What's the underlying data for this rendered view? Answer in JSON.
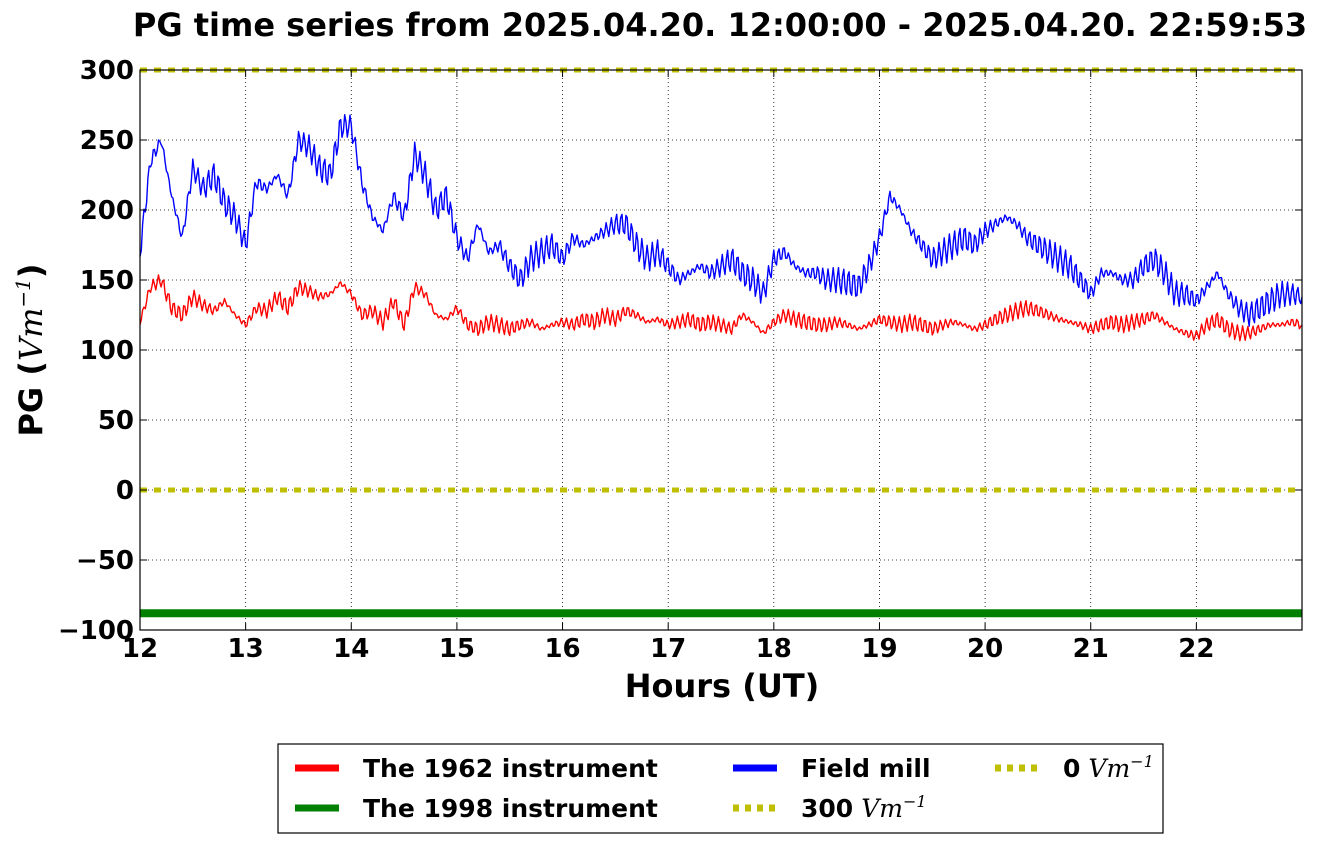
{
  "chart_data": {
    "type": "line",
    "title": "PG time series from 2025.04.20. 12:00:00 - 2025.04.20. 22:59:53",
    "xlabel": "Hours (UT)",
    "ylabel": "PG (",
    "ylabel_unit": "Vm",
    "ylabel_exp": "−1",
    "ylabel_close": ")",
    "xlim": [
      12,
      23
    ],
    "ylim": [
      -100,
      300
    ],
    "x_ticks": [
      12,
      13,
      14,
      15,
      16,
      17,
      18,
      19,
      20,
      21,
      22
    ],
    "x_tick_labels": [
      "12",
      "13",
      "14",
      "15",
      "16",
      "17",
      "18",
      "19",
      "20",
      "21",
      "22"
    ],
    "y_ticks": [
      -100,
      -50,
      0,
      50,
      100,
      150,
      200,
      250,
      300
    ],
    "y_tick_labels": [
      "−100",
      "−50",
      "0",
      "50",
      "100",
      "150",
      "200",
      "250",
      "300"
    ],
    "grid": true,
    "legend_placement": "below",
    "x": [
      12.0,
      12.1,
      12.2,
      12.3,
      12.4,
      12.5,
      12.6,
      12.7,
      12.8,
      12.9,
      13.0,
      13.1,
      13.2,
      13.3,
      13.4,
      13.5,
      13.6,
      13.7,
      13.8,
      13.9,
      14.0,
      14.1,
      14.2,
      14.3,
      14.4,
      14.5,
      14.6,
      14.7,
      14.8,
      14.9,
      15.0,
      15.1,
      15.2,
      15.3,
      15.4,
      15.5,
      15.6,
      15.7,
      15.8,
      15.9,
      16.0,
      16.1,
      16.2,
      16.3,
      16.4,
      16.5,
      16.6,
      16.7,
      16.8,
      16.9,
      17.0,
      17.1,
      17.2,
      17.3,
      17.4,
      17.5,
      17.6,
      17.7,
      17.8,
      17.9,
      18.0,
      18.1,
      18.2,
      18.3,
      18.4,
      18.5,
      18.6,
      18.7,
      18.8,
      18.9,
      19.0,
      19.1,
      19.2,
      19.3,
      19.4,
      19.5,
      19.6,
      19.7,
      19.8,
      19.9,
      20.0,
      20.1,
      20.2,
      20.3,
      20.4,
      20.5,
      20.6,
      20.7,
      20.8,
      20.9,
      21.0,
      21.1,
      21.2,
      21.3,
      21.4,
      21.5,
      21.6,
      21.7,
      21.8,
      21.9,
      22.0,
      22.1,
      22.2,
      22.3,
      22.4,
      22.5,
      22.6,
      22.7,
      22.8,
      22.9,
      23.0
    ],
    "series": [
      {
        "name": "The 1962 instrument",
        "color": "#ff0000",
        "values": [
          120,
          145,
          150,
          130,
          125,
          138,
          132,
          128,
          135,
          125,
          118,
          130,
          128,
          138,
          130,
          145,
          142,
          138,
          140,
          148,
          140,
          125,
          128,
          120,
          135,
          118,
          145,
          140,
          125,
          122,
          130,
          118,
          115,
          120,
          118,
          115,
          118,
          120,
          115,
          118,
          120,
          118,
          122,
          120,
          125,
          122,
          128,
          125,
          120,
          122,
          118,
          120,
          122,
          118,
          120,
          118,
          115,
          125,
          120,
          112,
          120,
          125,
          122,
          120,
          118,
          118,
          120,
          118,
          115,
          118,
          122,
          120,
          118,
          120,
          118,
          115,
          118,
          120,
          118,
          115,
          118,
          122,
          125,
          128,
          130,
          128,
          125,
          122,
          120,
          118,
          115,
          118,
          120,
          118,
          120,
          122,
          125,
          120,
          115,
          112,
          110,
          118,
          122,
          115,
          112,
          112,
          115,
          118,
          118,
          120,
          118
        ]
      },
      {
        "name": "Field mill",
        "color": "#0000ff",
        "values": [
          170,
          235,
          250,
          210,
          180,
          230,
          215,
          225,
          205,
          195,
          175,
          220,
          215,
          225,
          210,
          250,
          245,
          230,
          225,
          260,
          260,
          220,
          195,
          185,
          210,
          195,
          240,
          225,
          200,
          210,
          180,
          165,
          190,
          170,
          175,
          160,
          150,
          165,
          170,
          175,
          165,
          180,
          175,
          180,
          185,
          190,
          190,
          175,
          165,
          170,
          160,
          150,
          155,
          160,
          155,
          160,
          165,
          155,
          150,
          140,
          165,
          170,
          160,
          155,
          155,
          150,
          150,
          148,
          145,
          160,
          180,
          210,
          200,
          185,
          175,
          165,
          170,
          175,
          180,
          175,
          185,
          190,
          195,
          190,
          180,
          175,
          170,
          165,
          160,
          150,
          140,
          155,
          155,
          150,
          150,
          160,
          165,
          155,
          140,
          140,
          135,
          145,
          155,
          140,
          130,
          125,
          130,
          135,
          140,
          140,
          138
        ]
      },
      {
        "name": "The 1998 instrument",
        "color": "#008000",
        "values": [
          -88,
          -88,
          -88,
          -88,
          -88,
          -88,
          -88,
          -88,
          -88,
          -88,
          -88,
          -88,
          -88,
          -88,
          -88,
          -88,
          -88,
          -88,
          -88,
          -88,
          -88,
          -88,
          -88,
          -88,
          -88,
          -88,
          -88,
          -88,
          -88,
          -88,
          -88,
          -88,
          -88,
          -88,
          -88,
          -88,
          -88,
          -88,
          -88,
          -88,
          -88,
          -88,
          -88,
          -88,
          -88,
          -88,
          -88,
          -88,
          -88,
          -88,
          -88,
          -88,
          -88,
          -88,
          -88,
          -88,
          -88,
          -88,
          -88,
          -88,
          -88,
          -88,
          -88,
          -88,
          -88,
          -88,
          -88,
          -88,
          -88,
          -88,
          -88,
          -88,
          -88,
          -88,
          -88,
          -88,
          -88,
          -88,
          -88,
          -88,
          -88,
          -88,
          -88,
          -88,
          -88,
          -88,
          -88,
          -88,
          -88,
          -88,
          -88,
          -88,
          -88,
          -88,
          -88,
          -88,
          -88,
          -88,
          -88,
          -88,
          -88,
          -88,
          -88,
          -88,
          -88,
          -88,
          -88,
          -88,
          -88,
          -88,
          -88
        ]
      }
    ],
    "reference_lines": [
      {
        "name": "300",
        "value": 300,
        "color": "#bfbf00",
        "style": "dotted"
      },
      {
        "name": "0",
        "value": 0,
        "color": "#bfbf00",
        "style": "dotted"
      }
    ],
    "legend": [
      {
        "label": "The 1962 instrument",
        "unit": "",
        "exp": "",
        "color": "#ff0000",
        "style": "solid"
      },
      {
        "label": "The 1998 instrument",
        "unit": "",
        "exp": "",
        "color": "#008000",
        "style": "solid"
      },
      {
        "label": "Field mill",
        "unit": "",
        "exp": "",
        "color": "#0000ff",
        "style": "solid"
      },
      {
        "label": "300",
        "unit": "Vm",
        "exp": "−1",
        "color": "#bfbf00",
        "style": "dotted"
      },
      {
        "label": "0",
        "unit": "Vm",
        "exp": "−1",
        "color": "#bfbf00",
        "style": "dotted"
      }
    ]
  }
}
